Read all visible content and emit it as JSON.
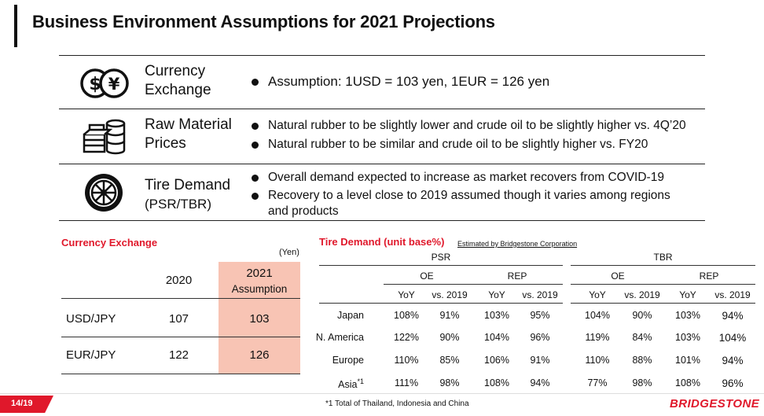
{
  "page": {
    "title": "Business Environment Assumptions for 2021 Projections",
    "page_number": "14/19",
    "footnote": "*1 Total of Thailand, Indonesia and China",
    "logo_text": "BRIDGESTONE",
    "accent_color": "#e0182b",
    "highlight_color": "#f8c4b4"
  },
  "assumptions": [
    {
      "icon": "currency-icon",
      "label_lines": [
        "Currency",
        "Exchange"
      ],
      "bullets": [
        "Assumption: 1USD = 103 yen, 1EUR = 126 yen"
      ]
    },
    {
      "icon": "raw-materials-icon",
      "label_lines": [
        "Raw Material",
        "Prices"
      ],
      "bullets": [
        "Natural rubber to be slightly lower and crude oil to be slightly higher vs. 4Q’20",
        "Natural rubber to be similar and crude oil to be slightly higher vs. FY20"
      ]
    },
    {
      "icon": "tire-icon",
      "label_lines": [
        "Tire Demand",
        "(PSR/TBR)"
      ],
      "bullets": [
        "Overall demand expected to increase as market recovers from COVID-19",
        "Recovery to a level close to 2019 assumed though it varies among regions",
        "and products"
      ]
    }
  ],
  "currency": {
    "title": "Currency Exchange",
    "unit": "(Yen)",
    "col_2020": "2020",
    "col_2021": "2021",
    "col_2021_sub": "Assumption",
    "rows": [
      {
        "label": "USD/JPY",
        "v2020": "107",
        "v2021": "103"
      },
      {
        "label": "EUR/JPY",
        "v2020": "122",
        "v2021": "126"
      }
    ]
  },
  "tire_demand": {
    "title": "Tire Demand (unit base%)",
    "note": "Estimated by Bridgestone Corporation",
    "groups": [
      "PSR",
      "TBR"
    ],
    "subgroups": [
      "OE",
      "REP",
      "OE",
      "REP"
    ],
    "columns": [
      "YoY",
      "vs. 2019",
      "YoY",
      "vs. 2019",
      "YoY",
      "vs. 2019",
      "YoY",
      "vs. 2019"
    ],
    "rows": [
      {
        "region": "Japan",
        "values": [
          "108%",
          "91%",
          "103%",
          "95%",
          "104%",
          "90%",
          "103%",
          "94%"
        ]
      },
      {
        "region": "N. America",
        "values": [
          "122%",
          "90%",
          "104%",
          "96%",
          "119%",
          "84%",
          "103%",
          "104%"
        ]
      },
      {
        "region": "Europe",
        "values": [
          "110%",
          "85%",
          "106%",
          "91%",
          "110%",
          "88%",
          "101%",
          "94%"
        ]
      },
      {
        "region": "Asia",
        "footnote_mark": "*1",
        "values": [
          "111%",
          "98%",
          "108%",
          "94%",
          "77%",
          "98%",
          "108%",
          "96%"
        ]
      }
    ]
  }
}
